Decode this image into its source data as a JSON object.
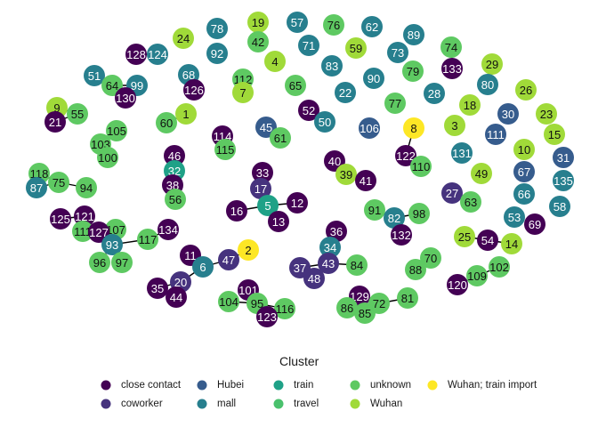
{
  "legend": {
    "title": "Cluster",
    "items": [
      {
        "key": "close_contact",
        "label": "close contact",
        "color": "#440154"
      },
      {
        "key": "coworker",
        "label": "coworker",
        "color": "#46337e"
      },
      {
        "key": "hubei",
        "label": "Hubei",
        "color": "#365c8d"
      },
      {
        "key": "mall",
        "label": "mall",
        "color": "#277f8e"
      },
      {
        "key": "train",
        "label": "train",
        "color": "#1fa187"
      },
      {
        "key": "travel",
        "label": "travel",
        "color": "#4ac16d"
      },
      {
        "key": "unknown",
        "label": "unknown",
        "color": "#5ec962"
      },
      {
        "key": "wuhan",
        "label": "Wuhan",
        "color": "#a0da39"
      },
      {
        "key": "wuhan_train_import",
        "label": "Wuhan; train import",
        "color": "#fde725"
      }
    ]
  },
  "palette": {
    "close_contact": "#440154",
    "coworker": "#46337e",
    "hubei": "#365c8d",
    "mall": "#277f8e",
    "train": "#1fa187",
    "travel": "#4ac16d",
    "unknown": "#5ec962",
    "wuhan": "#a0da39",
    "wuhan_train_import": "#fde725"
  },
  "nodes": [
    {
      "id": "19",
      "cluster": "wuhan"
    },
    {
      "id": "57",
      "cluster": "mall"
    },
    {
      "id": "76",
      "cluster": "unknown"
    },
    {
      "id": "62",
      "cluster": "mall"
    },
    {
      "id": "78",
      "cluster": "mall"
    },
    {
      "id": "24",
      "cluster": "wuhan"
    },
    {
      "id": "42",
      "cluster": "unknown"
    },
    {
      "id": "71",
      "cluster": "mall"
    },
    {
      "id": "59",
      "cluster": "wuhan"
    },
    {
      "id": "89",
      "cluster": "mall"
    },
    {
      "id": "128",
      "cluster": "close_contact"
    },
    {
      "id": "124",
      "cluster": "mall"
    },
    {
      "id": "92",
      "cluster": "mall"
    },
    {
      "id": "73",
      "cluster": "mall"
    },
    {
      "id": "74",
      "cluster": "unknown"
    },
    {
      "id": "4",
      "cluster": "wuhan"
    },
    {
      "id": "83",
      "cluster": "mall"
    },
    {
      "id": "29",
      "cluster": "wuhan"
    },
    {
      "id": "51",
      "cluster": "mall"
    },
    {
      "id": "68",
      "cluster": "mall"
    },
    {
      "id": "112",
      "cluster": "unknown"
    },
    {
      "id": "79",
      "cluster": "unknown"
    },
    {
      "id": "133",
      "cluster": "close_contact"
    },
    {
      "id": "64",
      "cluster": "unknown"
    },
    {
      "id": "99",
      "cluster": "mall"
    },
    {
      "id": "65",
      "cluster": "unknown"
    },
    {
      "id": "90",
      "cluster": "mall"
    },
    {
      "id": "80",
      "cluster": "mall"
    },
    {
      "id": "126",
      "cluster": "close_contact"
    },
    {
      "id": "7",
      "cluster": "wuhan"
    },
    {
      "id": "22",
      "cluster": "mall"
    },
    {
      "id": "28",
      "cluster": "mall"
    },
    {
      "id": "26",
      "cluster": "wuhan"
    },
    {
      "id": "130",
      "cluster": "close_contact"
    },
    {
      "id": "77",
      "cluster": "unknown"
    },
    {
      "id": "18",
      "cluster": "wuhan"
    },
    {
      "id": "9",
      "cluster": "wuhan"
    },
    {
      "id": "55",
      "cluster": "unknown"
    },
    {
      "id": "52",
      "cluster": "close_contact"
    },
    {
      "id": "1",
      "cluster": "wuhan"
    },
    {
      "id": "30",
      "cluster": "hubei"
    },
    {
      "id": "23",
      "cluster": "wuhan"
    },
    {
      "id": "21",
      "cluster": "close_contact"
    },
    {
      "id": "60",
      "cluster": "unknown"
    },
    {
      "id": "50",
      "cluster": "mall"
    },
    {
      "id": "3",
      "cluster": "wuhan"
    },
    {
      "id": "105",
      "cluster": "unknown"
    },
    {
      "id": "45",
      "cluster": "hubei"
    },
    {
      "id": "106",
      "cluster": "hubei"
    },
    {
      "id": "8",
      "cluster": "wuhan_train_import"
    },
    {
      "id": "111",
      "cluster": "hubei"
    },
    {
      "id": "15",
      "cluster": "wuhan"
    },
    {
      "id": "114",
      "cluster": "close_contact"
    },
    {
      "id": "61",
      "cluster": "unknown"
    },
    {
      "id": "103",
      "cluster": "unknown"
    },
    {
      "id": "115",
      "cluster": "unknown"
    },
    {
      "id": "10",
      "cluster": "wuhan"
    },
    {
      "id": "131",
      "cluster": "mall"
    },
    {
      "id": "100",
      "cluster": "unknown"
    },
    {
      "id": "46",
      "cluster": "close_contact"
    },
    {
      "id": "122",
      "cluster": "close_contact"
    },
    {
      "id": "31",
      "cluster": "hubei"
    },
    {
      "id": "40",
      "cluster": "close_contact"
    },
    {
      "id": "110",
      "cluster": "unknown"
    },
    {
      "id": "32",
      "cluster": "train"
    },
    {
      "id": "33",
      "cluster": "close_contact"
    },
    {
      "id": "39",
      "cluster": "wuhan"
    },
    {
      "id": "49",
      "cluster": "wuhan"
    },
    {
      "id": "67",
      "cluster": "hubei"
    },
    {
      "id": "118",
      "cluster": "unknown"
    },
    {
      "id": "41",
      "cluster": "close_contact"
    },
    {
      "id": "135",
      "cluster": "mall"
    },
    {
      "id": "87",
      "cluster": "mall"
    },
    {
      "id": "75",
      "cluster": "unknown"
    },
    {
      "id": "94",
      "cluster": "unknown"
    },
    {
      "id": "38",
      "cluster": "close_contact"
    },
    {
      "id": "17",
      "cluster": "coworker"
    },
    {
      "id": "12",
      "cluster": "close_contact"
    },
    {
      "id": "27",
      "cluster": "coworker"
    },
    {
      "id": "63",
      "cluster": "unknown"
    },
    {
      "id": "66",
      "cluster": "mall"
    },
    {
      "id": "56",
      "cluster": "unknown"
    },
    {
      "id": "5",
      "cluster": "train"
    },
    {
      "id": "91",
      "cluster": "unknown"
    },
    {
      "id": "98",
      "cluster": "unknown"
    },
    {
      "id": "58",
      "cluster": "mall"
    },
    {
      "id": "16",
      "cluster": "close_contact"
    },
    {
      "id": "13",
      "cluster": "close_contact"
    },
    {
      "id": "82",
      "cluster": "mall"
    },
    {
      "id": "53",
      "cluster": "mall"
    },
    {
      "id": "69",
      "cluster": "close_contact"
    },
    {
      "id": "125",
      "cluster": "close_contact"
    },
    {
      "id": "121",
      "cluster": "close_contact"
    },
    {
      "id": "132",
      "cluster": "close_contact"
    },
    {
      "id": "107",
      "cluster": "unknown"
    },
    {
      "id": "111b",
      "label": "111",
      "cluster": "unknown"
    },
    {
      "id": "127",
      "cluster": "close_contact"
    },
    {
      "id": "134",
      "cluster": "close_contact"
    },
    {
      "id": "36",
      "cluster": "close_contact"
    },
    {
      "id": "93",
      "cluster": "mall"
    },
    {
      "id": "117",
      "cluster": "unknown"
    },
    {
      "id": "25",
      "cluster": "wuhan"
    },
    {
      "id": "54",
      "cluster": "close_contact"
    },
    {
      "id": "14",
      "cluster": "wuhan"
    },
    {
      "id": "2",
      "cluster": "wuhan_train_import"
    },
    {
      "id": "34",
      "cluster": "mall"
    },
    {
      "id": "11",
      "cluster": "close_contact"
    },
    {
      "id": "47",
      "cluster": "coworker"
    },
    {
      "id": "96",
      "cluster": "unknown"
    },
    {
      "id": "97",
      "cluster": "unknown"
    },
    {
      "id": "70",
      "cluster": "unknown"
    },
    {
      "id": "6",
      "cluster": "mall"
    },
    {
      "id": "37",
      "cluster": "coworker"
    },
    {
      "id": "43",
      "cluster": "coworker"
    },
    {
      "id": "84",
      "cluster": "unknown"
    },
    {
      "id": "88",
      "cluster": "unknown"
    },
    {
      "id": "102",
      "cluster": "unknown"
    },
    {
      "id": "20",
      "cluster": "coworker"
    },
    {
      "id": "48",
      "cluster": "coworker"
    },
    {
      "id": "35",
      "cluster": "close_contact"
    },
    {
      "id": "109",
      "cluster": "unknown"
    },
    {
      "id": "120",
      "cluster": "close_contact"
    },
    {
      "id": "101",
      "cluster": "close_contact"
    },
    {
      "id": "44",
      "cluster": "close_contact"
    },
    {
      "id": "81",
      "cluster": "unknown"
    },
    {
      "id": "129",
      "cluster": "close_contact"
    },
    {
      "id": "104",
      "cluster": "unknown"
    },
    {
      "id": "95",
      "cluster": "unknown"
    },
    {
      "id": "116",
      "cluster": "unknown"
    },
    {
      "id": "72",
      "cluster": "unknown"
    },
    {
      "id": "86",
      "cluster": "unknown"
    },
    {
      "id": "85",
      "cluster": "unknown"
    },
    {
      "id": "123",
      "cluster": "close_contact"
    }
  ],
  "edges": [
    [
      "1",
      "60"
    ],
    [
      "128",
      "124"
    ],
    [
      "64",
      "99"
    ],
    [
      "99",
      "130"
    ],
    [
      "68",
      "126"
    ],
    [
      "112",
      "7"
    ],
    [
      "9",
      "55"
    ],
    [
      "55",
      "21"
    ],
    [
      "45",
      "61"
    ],
    [
      "114",
      "115"
    ],
    [
      "103",
      "100"
    ],
    [
      "105",
      "103"
    ],
    [
      "46",
      "32"
    ],
    [
      "32",
      "38"
    ],
    [
      "38",
      "56"
    ],
    [
      "33",
      "17"
    ],
    [
      "17",
      "5"
    ],
    [
      "5",
      "12"
    ],
    [
      "5",
      "13"
    ],
    [
      "16",
      "5"
    ],
    [
      "40",
      "39"
    ],
    [
      "39",
      "41"
    ],
    [
      "122",
      "110"
    ],
    [
      "8",
      "122"
    ],
    [
      "27",
      "63"
    ],
    [
      "118",
      "75"
    ],
    [
      "87",
      "75"
    ],
    [
      "75",
      "94"
    ],
    [
      "91",
      "82"
    ],
    [
      "82",
      "98"
    ],
    [
      "82",
      "132"
    ],
    [
      "125",
      "121"
    ],
    [
      "121",
      "111b"
    ],
    [
      "111b",
      "127"
    ],
    [
      "127",
      "107"
    ],
    [
      "127",
      "93"
    ],
    [
      "93",
      "117"
    ],
    [
      "117",
      "134"
    ],
    [
      "93",
      "96"
    ],
    [
      "93",
      "97"
    ],
    [
      "25",
      "54"
    ],
    [
      "54",
      "14"
    ],
    [
      "2",
      "47"
    ],
    [
      "47",
      "6"
    ],
    [
      "11",
      "6"
    ],
    [
      "6",
      "20"
    ],
    [
      "20",
      "35"
    ],
    [
      "20",
      "44"
    ],
    [
      "36",
      "34"
    ],
    [
      "34",
      "43"
    ],
    [
      "37",
      "43"
    ],
    [
      "43",
      "48"
    ],
    [
      "43",
      "84"
    ],
    [
      "120",
      "109"
    ],
    [
      "109",
      "102"
    ],
    [
      "88",
      "70"
    ],
    [
      "101",
      "95"
    ],
    [
      "104",
      "95"
    ],
    [
      "95",
      "116"
    ],
    [
      "95",
      "123"
    ],
    [
      "129",
      "72"
    ],
    [
      "86",
      "72"
    ],
    [
      "85",
      "72"
    ],
    [
      "72",
      "81"
    ]
  ]
}
